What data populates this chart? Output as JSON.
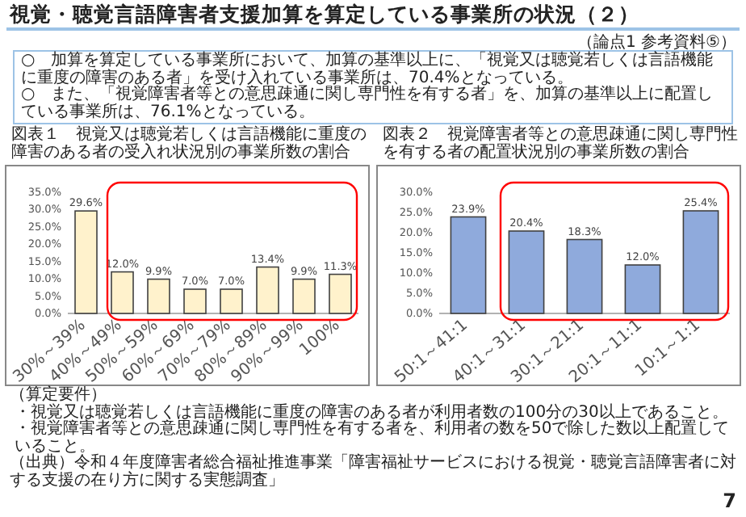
{
  "chart_data": [
    {
      "type": "other",
      "title": "視覚・聴覚言語障害者支援加算を算定している事業所の状況（２）",
      "subtitle": "（論点1 参考資料⑤）",
      "annotations": [
        "○　加算を算定している事業所において、加算の基準以上に、「視覚又は聴覚若しくは言語機能に重度の障害のある者」を受け入れている事業所は、70.4%となっている。",
        "○　また、「視覚障害者等との意思疎通に関し専門性を有する者」を、加算の基準以上に配置している事業所は、76.1%となっている。"
      ]
    },
    {
      "type": "bar",
      "title": "図表１　視覚又は聴覚若しくは言語機能に重度の障害のある者の受入れ状況別の事業所数の割合",
      "categories": [
        "30%～39%",
        "40%～49%",
        "50%～59%",
        "60%～69%",
        "70%～79%",
        "80%～89%",
        "90%～99%",
        "100%"
      ],
      "values": [
        29.6,
        12.0,
        9.9,
        7.0,
        7.0,
        13.4,
        9.9,
        11.3
      ],
      "value_labels": [
        "29.6%",
        "12.0%",
        "9.9%",
        "7.0%",
        "7.0%",
        "13.4%",
        "9.9%",
        "11.3%"
      ],
      "color": "#fff2cc",
      "ylim": [
        0,
        35
      ],
      "yticks": [
        {
          "value": 0,
          "label": "0.0%"
        },
        {
          "value": 5,
          "label": "5.0%"
        },
        {
          "value": 10,
          "label": "10.0%"
        },
        {
          "value": 15,
          "label": "15.0%"
        },
        {
          "value": 20,
          "label": "20.0%"
        },
        {
          "value": 25,
          "label": "25.0%"
        },
        {
          "value": 30,
          "label": "30.0%"
        },
        {
          "value": 35,
          "label": "35.0%"
        }
      ]
    },
    {
      "type": "bar",
      "title": "図表２　視覚障害者等との意思疎通に関し専門性を有する者の配置状況別の事業所数の割合",
      "categories": [
        "50:1～41:1",
        "40:1～31:1",
        "30:1～21:1",
        "20:1～11:1",
        "10:1～1:1"
      ],
      "values": [
        23.9,
        20.4,
        18.3,
        12.0,
        25.4
      ],
      "value_labels": [
        "23.9%",
        "20.4%",
        "18.3%",
        "12.0%",
        "25.4%"
      ],
      "color": "#8faadc",
      "ylim": [
        0,
        30
      ],
      "yticks": [
        {
          "value": 0,
          "label": "0.0%"
        },
        {
          "value": 5,
          "label": "5.0%"
        },
        {
          "value": 10,
          "label": "10.0%"
        },
        {
          "value": 15,
          "label": "15.0%"
        },
        {
          "value": 20,
          "label": "20.0%"
        },
        {
          "value": 25,
          "label": "25.0%"
        },
        {
          "value": 30,
          "label": "30.0%"
        }
      ]
    },
    {
      "type": "other",
      "annotations": [
        "（算定要件）",
        "・視覚又は聴覚若しくは言語機能に重度の障害のある者が利用者数の100分の30以上であること。",
        "・視覚障害者等との意思疎通に関し専門性を有する者を、利用者の数を50で除した数以上配置していること。",
        "（出典）令和４年度障害者総合福祉推進事業「障害福祉サービスにおける視覚・聴覚言語障害者に対する支援の在り方に関する実態調査」",
        "7"
      ]
    }
  ]
}
